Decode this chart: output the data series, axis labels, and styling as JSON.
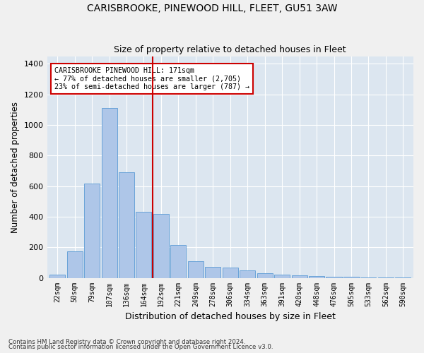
{
  "title1": "CARISBROOKE, PINEWOOD HILL, FLEET, GU51 3AW",
  "title2": "Size of property relative to detached houses in Fleet",
  "xlabel": "Distribution of detached houses by size in Fleet",
  "ylabel": "Number of detached properties",
  "bar_labels": [
    "22sqm",
    "50sqm",
    "79sqm",
    "107sqm",
    "136sqm",
    "164sqm",
    "192sqm",
    "221sqm",
    "249sqm",
    "278sqm",
    "306sqm",
    "334sqm",
    "363sqm",
    "391sqm",
    "420sqm",
    "448sqm",
    "476sqm",
    "505sqm",
    "533sqm",
    "562sqm",
    "590sqm"
  ],
  "bar_values": [
    20,
    175,
    615,
    1110,
    690,
    430,
    420,
    215,
    110,
    70,
    65,
    50,
    30,
    20,
    15,
    10,
    5,
    5,
    3,
    3,
    2
  ],
  "bar_color": "#aec6e8",
  "bar_edgecolor": "#5b9bd5",
  "vline_color": "#cc0000",
  "annotation_text": "CARISBROOKE PINEWOOD HILL: 171sqm\n← 77% of detached houses are smaller (2,705)\n23% of semi-detached houses are larger (787) →",
  "annotation_box_color": "#ffffff",
  "annotation_box_edgecolor": "#cc0000",
  "ylim": [
    0,
    1450
  ],
  "yticks": [
    0,
    200,
    400,
    600,
    800,
    1000,
    1200,
    1400
  ],
  "background_color": "#dce6f0",
  "grid_color": "#ffffff",
  "footer1": "Contains HM Land Registry data © Crown copyright and database right 2024.",
  "footer2": "Contains public sector information licensed under the Open Government Licence v3.0."
}
